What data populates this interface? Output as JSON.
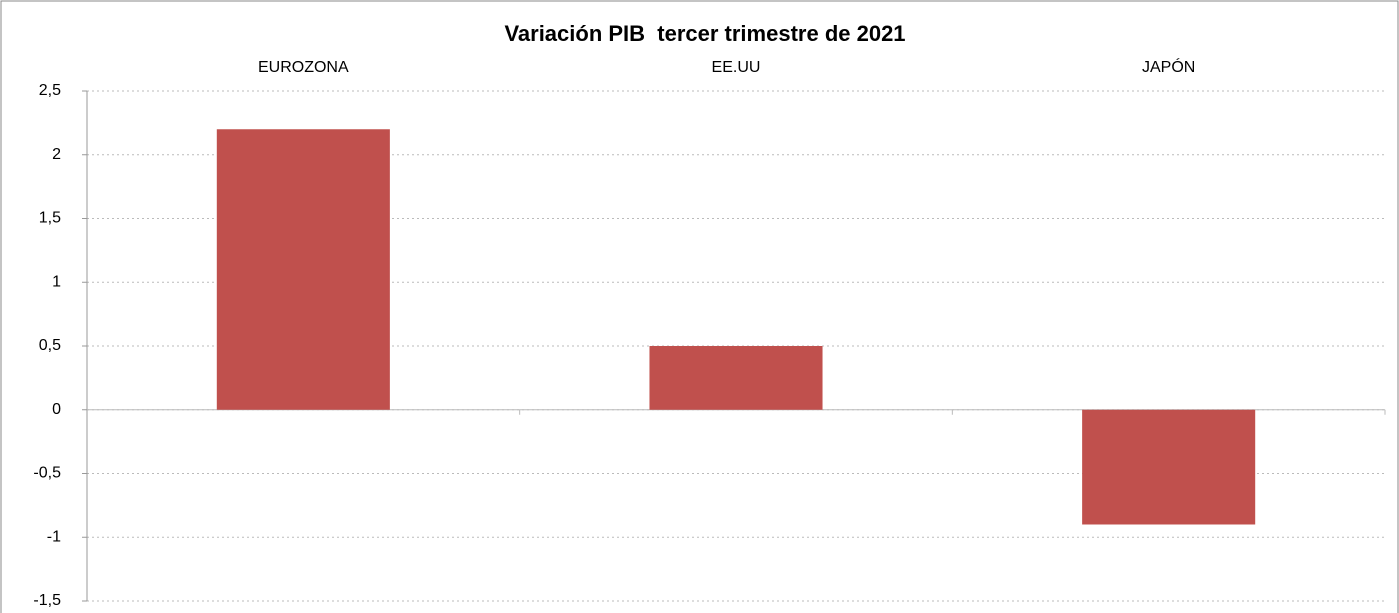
{
  "chart_data": {
    "type": "bar",
    "title": "Variación PIB  tercer trimestre de 2021",
    "categories": [
      "EUROZONA",
      "EE.UU",
      "JAPÓN"
    ],
    "values": [
      2.2,
      0.5,
      -0.9
    ],
    "color": "#c0504d",
    "ylim": [
      -1.5,
      2.5
    ],
    "yticks": [
      {
        "value": -1.5,
        "label": "-1,5"
      },
      -1,
      {
        "value": -0.5,
        "label": "-0,5"
      },
      0,
      {
        "value": 0.5,
        "label": "0,5"
      },
      1,
      {
        "value": 1.5,
        "label": "1,5"
      },
      2,
      {
        "value": 2.5,
        "label": "2,5"
      }
    ],
    "grid": true
  }
}
